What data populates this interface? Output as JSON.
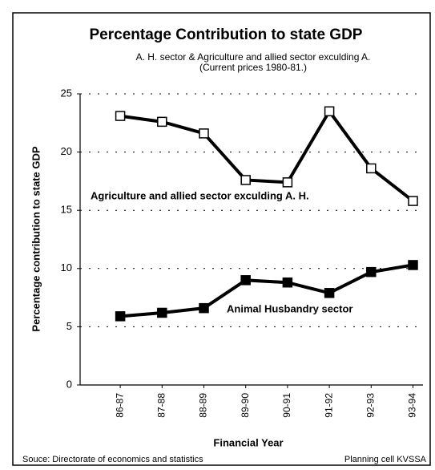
{
  "chart_data": {
    "type": "line",
    "title": "Percentage Contribution to state GDP",
    "subtitle": [
      "A. H. sector & Agriculture and allied sector exculding A.",
      "(Current prices 1980-81.)"
    ],
    "y_label": "Percentage contribution to state GDP",
    "x_label": "Financial Year",
    "categories": [
      "86-87",
      "87-88",
      "88-89",
      "89-90",
      "90-91",
      "91-92",
      "92-93",
      "93-94"
    ],
    "series": [
      {
        "name": "Agriculture and allied sector exculding A. H.",
        "color": "#000000",
        "marker": "open-square",
        "values": [
          23.1,
          22.6,
          21.6,
          17.6,
          17.4,
          23.5,
          18.6,
          15.8
        ]
      },
      {
        "name": "Animal Husbandry sector",
        "color": "#000000",
        "marker": "filled-square",
        "values": [
          5.9,
          6.2,
          6.6,
          9.0,
          8.8,
          7.9,
          9.7,
          10.3
        ]
      }
    ],
    "ylim": [
      0,
      25
    ],
    "yticks": [
      0,
      5,
      10,
      15,
      20,
      25
    ],
    "grid": true,
    "footer": {
      "source": "Souce: Directorate of economics and statistics",
      "credit": "Planning cell KVSSA"
    }
  }
}
